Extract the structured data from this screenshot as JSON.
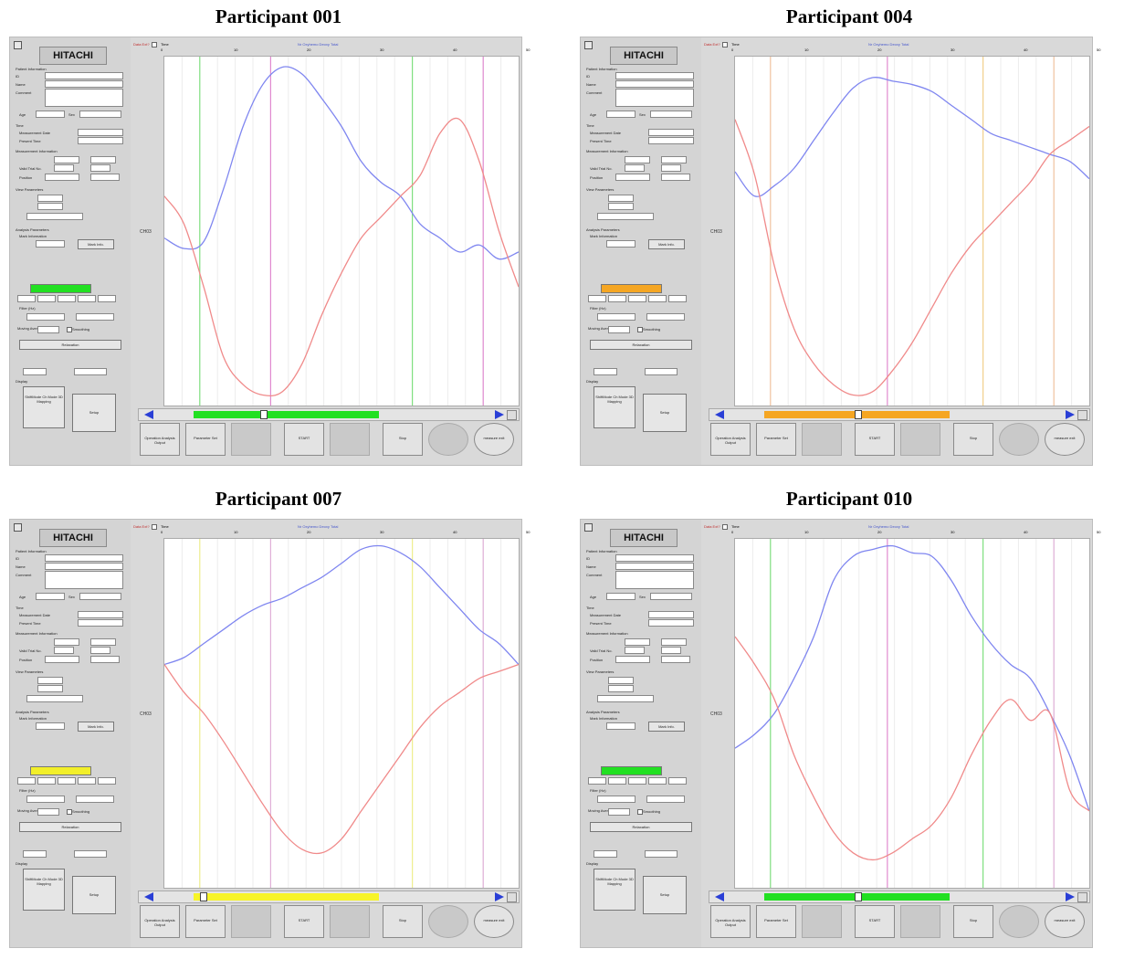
{
  "panel_titles": [
    "Participant 001",
    "Participant 004",
    "Participant 007",
    "Participant 010"
  ],
  "app": {
    "logo": "HITACHI",
    "labels": {
      "patient_info": "Patient Information",
      "id": "ID",
      "name": "Name",
      "comment": "Comment",
      "age": "Age",
      "sex": "Sex",
      "time": "Time",
      "measurement_date": "Measurement Date",
      "present_time": "Present Time",
      "measurement_info": "Measurement Information",
      "valid_trial_no": "Valid Trial No.",
      "position": "Position",
      "view_parameters": "View Parameters",
      "analysis_parameters": "Analysis Parameters",
      "mark_information": "Mark Information",
      "filter": "Filter (Hz)",
      "moving_average": "Moving Average",
      "smoothing": "Smoothing",
      "display": "Display",
      "ch_label": "CH03"
    },
    "buttons": {
      "mark_info": "Mark Info.",
      "relaxation": "Relaxation",
      "display_modes": "ShiftMode  Ch  Mode  3D Mapping",
      "setup": "Setup",
      "operation": "Operation  Analysis  Output",
      "parameter_set": "Parameter Set",
      "start": "START",
      "stop": "Stop",
      "measure_exit": "measure exit"
    },
    "topbar": {
      "label_left": "Data Ext?",
      "label_time": "Time",
      "legend": "Nr  Oxyhemo  Deoxy  Total",
      "ticks": [
        "0",
        "10",
        "20",
        "30",
        "40",
        "50"
      ]
    }
  },
  "participants": [
    {
      "id": "001",
      "indicator_color": "#22e022",
      "scroll_color": "#22e022",
      "scroll_fraction": 0.55,
      "thumb_fraction": 0.22,
      "markers": [
        {
          "x": 0.1,
          "color": "#80e080"
        },
        {
          "x": 0.3,
          "color": "#e08ad0"
        },
        {
          "x": 0.7,
          "color": "#80e080"
        },
        {
          "x": 0.9,
          "color": "#e08ad0"
        }
      ],
      "blue_curve": [
        0.52,
        0.55,
        0.53,
        0.38,
        0.2,
        0.08,
        0.03,
        0.05,
        0.12,
        0.2,
        0.3,
        0.36,
        0.4,
        0.48,
        0.52,
        0.56,
        0.54,
        0.58,
        0.56
      ],
      "red_curve": [
        0.4,
        0.48,
        0.66,
        0.86,
        0.94,
        0.97,
        0.96,
        0.88,
        0.74,
        0.62,
        0.52,
        0.46,
        0.4,
        0.34,
        0.22,
        0.18,
        0.3,
        0.5,
        0.66
      ]
    },
    {
      "id": "004",
      "indicator_color": "#f5a623",
      "scroll_color": "#f5a623",
      "scroll_fraction": 0.55,
      "thumb_fraction": 0.3,
      "markers": [
        {
          "x": 0.1,
          "color": "#f2c3a0"
        },
        {
          "x": 0.43,
          "color": "#e08ad0"
        },
        {
          "x": 0.7,
          "color": "#f2d08c"
        },
        {
          "x": 0.9,
          "color": "#f2c3a0"
        }
      ],
      "blue_curve": [
        0.33,
        0.4,
        0.37,
        0.32,
        0.24,
        0.16,
        0.09,
        0.06,
        0.07,
        0.08,
        0.1,
        0.14,
        0.18,
        0.22,
        0.24,
        0.26,
        0.28,
        0.3,
        0.35
      ],
      "red_curve": [
        0.18,
        0.34,
        0.6,
        0.78,
        0.88,
        0.94,
        0.97,
        0.96,
        0.9,
        0.82,
        0.72,
        0.62,
        0.54,
        0.48,
        0.42,
        0.36,
        0.28,
        0.24,
        0.2
      ]
    },
    {
      "id": "007",
      "indicator_color": "#f2ef2a",
      "scroll_color": "#f7f428",
      "scroll_fraction": 0.55,
      "thumb_fraction": 0.02,
      "markers": [
        {
          "x": 0.1,
          "color": "#efef90"
        },
        {
          "x": 0.3,
          "color": "#e0b0d8"
        },
        {
          "x": 0.7,
          "color": "#efef90"
        },
        {
          "x": 0.9,
          "color": "#e0b0d8"
        }
      ],
      "blue_curve": [
        0.36,
        0.34,
        0.3,
        0.26,
        0.22,
        0.19,
        0.17,
        0.14,
        0.11,
        0.07,
        0.03,
        0.02,
        0.04,
        0.08,
        0.14,
        0.2,
        0.26,
        0.3,
        0.36
      ],
      "red_curve": [
        0.36,
        0.44,
        0.5,
        0.58,
        0.67,
        0.76,
        0.84,
        0.89,
        0.9,
        0.86,
        0.78,
        0.7,
        0.62,
        0.54,
        0.48,
        0.44,
        0.4,
        0.38,
        0.36
      ]
    },
    {
      "id": "010",
      "indicator_color": "#22e022",
      "scroll_color": "#22e022",
      "scroll_fraction": 0.55,
      "thumb_fraction": 0.3,
      "markers": [
        {
          "x": 0.1,
          "color": "#80e080"
        },
        {
          "x": 0.43,
          "color": "#e08ad0"
        },
        {
          "x": 0.7,
          "color": "#80e080"
        },
        {
          "x": 0.9,
          "color": "#e0b0d8"
        }
      ],
      "blue_curve": [
        0.6,
        0.56,
        0.5,
        0.4,
        0.28,
        0.12,
        0.05,
        0.03,
        0.02,
        0.04,
        0.05,
        0.12,
        0.22,
        0.3,
        0.36,
        0.4,
        0.5,
        0.62,
        0.78
      ],
      "red_curve": [
        0.28,
        0.36,
        0.46,
        0.62,
        0.74,
        0.84,
        0.9,
        0.92,
        0.9,
        0.86,
        0.82,
        0.74,
        0.62,
        0.52,
        0.46,
        0.52,
        0.5,
        0.72,
        0.78
      ]
    }
  ]
}
